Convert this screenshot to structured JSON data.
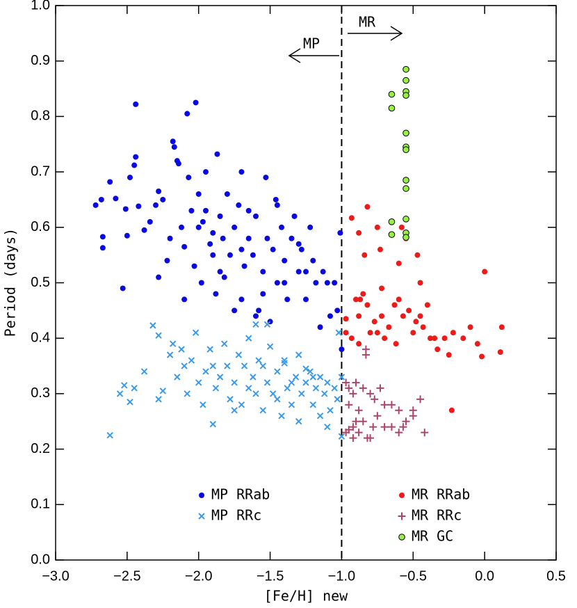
{
  "chart_data": {
    "type": "scatter",
    "xlabel": "[Fe/H] new",
    "ylabel": "Period (days)",
    "xlim": [
      -3.0,
      0.5
    ],
    "ylim": [
      0.0,
      1.0
    ],
    "xticks": [
      {
        "value": -3.0,
        "label": "−3.0"
      },
      {
        "value": -2.5,
        "label": "−2.5"
      },
      {
        "value": -2.0,
        "label": "−2.0"
      },
      {
        "value": -1.5,
        "label": "−1.5"
      },
      {
        "value": -1.0,
        "label": "−1.0"
      },
      {
        "value": -0.5,
        "label": "−0.5"
      },
      {
        "value": 0.0,
        "label": "0.0"
      },
      {
        "value": 0.5,
        "label": "0.5"
      }
    ],
    "yticks": [
      {
        "value": 0.0,
        "label": "0.0"
      },
      {
        "value": 0.1,
        "label": "0.1"
      },
      {
        "value": 0.2,
        "label": "0.2"
      },
      {
        "value": 0.3,
        "label": "0.3"
      },
      {
        "value": 0.4,
        "label": "0.4"
      },
      {
        "value": 0.5,
        "label": "0.5"
      },
      {
        "value": 0.6,
        "label": "0.6"
      },
      {
        "value": 0.7,
        "label": "0.7"
      },
      {
        "value": 0.8,
        "label": "0.8"
      },
      {
        "value": 0.9,
        "label": "0.9"
      },
      {
        "value": 1.0,
        "label": "1.0"
      }
    ],
    "divider_x": -1.0,
    "annotations": [
      "MP",
      "MR"
    ],
    "series": [
      {
        "name": "MP RRab",
        "color": "#0a0ae0",
        "marker": "circle",
        "x": [
          -2.72,
          -2.68,
          -2.67,
          -2.67,
          -2.62,
          -2.58,
          -2.53,
          -2.51,
          -2.5,
          -2.48,
          -2.45,
          -2.44,
          -2.44,
          -2.42,
          -2.38,
          -2.34,
          -2.3,
          -2.28,
          -2.28,
          -2.25,
          -2.22,
          -2.2,
          -2.18,
          -2.17,
          -2.15,
          -2.14,
          -2.12,
          -2.1,
          -2.08,
          -2.07,
          -2.05,
          -2.03,
          -2.02,
          -2.0,
          -1.98,
          -1.97,
          -1.95,
          -1.92,
          -1.9,
          -1.88,
          -1.87,
          -1.85,
          -1.83,
          -1.82,
          -1.8,
          -1.78,
          -1.75,
          -1.72,
          -1.7,
          -1.7,
          -1.68,
          -1.65,
          -1.62,
          -1.6,
          -1.58,
          -1.55,
          -1.53,
          -1.52,
          -1.5,
          -1.48,
          -1.46,
          -1.45,
          -1.42,
          -1.4,
          -1.38,
          -1.35,
          -1.33,
          -1.3,
          -1.28,
          -1.25,
          -1.22,
          -1.2,
          -1.18,
          -1.15,
          -1.13,
          -1.1,
          -1.08,
          -1.05,
          -1.03,
          -1.01,
          -1.0,
          -1.6,
          -1.75,
          -2.1,
          -1.9,
          -1.65,
          -1.45,
          -1.3,
          -1.55,
          -1.85,
          -2.0,
          -1.4,
          -1.25,
          -1.7,
          -1.95
        ],
        "values": [
          0.64,
          0.65,
          0.583,
          0.563,
          0.682,
          0.652,
          0.49,
          0.633,
          0.585,
          0.69,
          0.712,
          0.727,
          0.822,
          0.638,
          0.595,
          0.61,
          0.64,
          0.665,
          0.51,
          0.65,
          0.54,
          0.58,
          0.755,
          0.745,
          0.72,
          0.715,
          0.6,
          0.565,
          0.805,
          0.69,
          0.63,
          0.53,
          0.825,
          0.6,
          0.5,
          0.61,
          0.7,
          0.57,
          0.55,
          0.48,
          0.732,
          0.62,
          0.58,
          0.51,
          0.66,
          0.55,
          0.6,
          0.64,
          0.47,
          0.7,
          0.53,
          0.58,
          0.55,
          0.62,
          0.45,
          0.52,
          0.69,
          0.58,
          0.43,
          0.56,
          0.65,
          0.5,
          0.6,
          0.54,
          0.47,
          0.58,
          0.62,
          0.52,
          0.56,
          0.47,
          0.6,
          0.54,
          0.5,
          0.42,
          0.52,
          0.5,
          0.44,
          0.5,
          0.45,
          0.59,
          0.38,
          0.44,
          0.45,
          0.47,
          0.59,
          0.63,
          0.64,
          0.57,
          0.48,
          0.52,
          0.66,
          0.5,
          0.52,
          0.56,
          0.63
        ]
      },
      {
        "name": "MP RRc",
        "color": "#3a9ae8",
        "marker": "x",
        "x": [
          -2.62,
          -2.55,
          -2.52,
          -2.48,
          -2.45,
          -2.38,
          -2.32,
          -2.28,
          -2.28,
          -2.25,
          -2.2,
          -2.15,
          -2.12,
          -2.1,
          -2.08,
          -2.05,
          -2.02,
          -2.0,
          -1.97,
          -1.95,
          -1.92,
          -1.9,
          -1.88,
          -1.85,
          -1.82,
          -1.8,
          -1.78,
          -1.75,
          -1.72,
          -1.7,
          -1.68,
          -1.65,
          -1.62,
          -1.6,
          -1.58,
          -1.55,
          -1.52,
          -1.5,
          -1.48,
          -1.45,
          -1.42,
          -1.4,
          -1.38,
          -1.35,
          -1.32,
          -1.3,
          -1.28,
          -1.25,
          -1.22,
          -1.2,
          -1.18,
          -1.15,
          -1.12,
          -1.1,
          -1.08,
          -1.05,
          -1.03,
          -1.02,
          -1.0,
          -1.0,
          -1.6,
          -1.52,
          -1.4,
          -1.3,
          -1.15,
          -1.25,
          -1.35,
          -1.45,
          -1.75,
          -1.9,
          -2.18,
          -1.2,
          -1.1,
          -1.65,
          -1.55
        ],
        "values": [
          0.225,
          0.3,
          0.315,
          0.285,
          0.31,
          0.34,
          0.423,
          0.405,
          0.29,
          0.305,
          0.37,
          0.33,
          0.38,
          0.35,
          0.3,
          0.36,
          0.41,
          0.32,
          0.28,
          0.34,
          0.38,
          0.245,
          0.31,
          0.33,
          0.39,
          0.35,
          0.29,
          0.32,
          0.37,
          0.28,
          0.35,
          0.4,
          0.33,
          0.3,
          0.36,
          0.27,
          0.32,
          0.385,
          0.3,
          0.34,
          0.26,
          0.36,
          0.31,
          0.28,
          0.33,
          0.37,
          0.3,
          0.32,
          0.34,
          0.28,
          0.31,
          0.33,
          0.3,
          0.32,
          0.27,
          0.31,
          0.29,
          0.41,
          0.223,
          0.33,
          0.425,
          0.425,
          0.355,
          0.25,
          0.26,
          0.345,
          0.32,
          0.29,
          0.27,
          0.35,
          0.39,
          0.33,
          0.24,
          0.31,
          0.35
        ]
      },
      {
        "name": "MR RRab",
        "color": "#ee1a1a",
        "marker": "circle",
        "x": [
          -0.93,
          -0.82,
          -0.75,
          -0.73,
          -0.88,
          -0.84,
          -0.55,
          -0.58,
          -0.6,
          -0.47,
          0.0,
          -0.97,
          -0.97,
          -0.93,
          -0.88,
          -0.87,
          -0.85,
          -0.82,
          -0.8,
          -0.77,
          -0.75,
          -0.72,
          -0.7,
          -0.67,
          -0.63,
          -0.6,
          -0.57,
          -0.53,
          -0.5,
          -0.48,
          -0.45,
          -0.43,
          -0.4,
          -0.35,
          -0.33,
          -0.28,
          -0.25,
          -0.22,
          -0.15,
          -0.1,
          -0.05,
          0.12,
          0.11,
          -0.02,
          -0.23,
          -0.88,
          -0.62,
          -0.45,
          -0.38,
          -0.72,
          -0.9
        ],
        "values": [
          0.617,
          0.637,
          0.6,
          0.56,
          0.59,
          0.55,
          0.58,
          0.6,
          0.535,
          0.55,
          0.52,
          0.435,
          0.41,
          0.4,
          0.44,
          0.47,
          0.48,
          0.46,
          0.41,
          0.43,
          0.41,
          0.44,
          0.4,
          0.42,
          0.46,
          0.47,
          0.44,
          0.45,
          0.41,
          0.43,
          0.44,
          0.42,
          0.46,
          0.4,
          0.38,
          0.4,
          0.37,
          0.41,
          0.4,
          0.42,
          0.39,
          0.42,
          0.375,
          0.367,
          0.27,
          0.39,
          0.39,
          0.5,
          0.4,
          0.49,
          0.47
        ]
      },
      {
        "name": "MR RRc",
        "color": "#b04468",
        "marker": "plus",
        "x": [
          -0.97,
          -0.95,
          -0.92,
          -0.9,
          -0.85,
          -0.83,
          -0.83,
          -0.8,
          -0.77,
          -0.73,
          -0.7,
          -0.65,
          -0.6,
          -0.5,
          -0.45,
          -0.55,
          -0.42,
          -0.95,
          -0.9,
          -0.85,
          -0.82,
          -0.88,
          -0.92,
          -0.95,
          -0.75,
          -0.7,
          -0.65,
          -0.6,
          -0.57,
          -0.8,
          -0.88,
          -0.92,
          -0.97,
          -0.78,
          -0.5
        ],
        "values": [
          0.32,
          0.31,
          0.3,
          0.32,
          0.31,
          0.38,
          0.37,
          0.3,
          0.29,
          0.31,
          0.28,
          0.28,
          0.27,
          0.27,
          0.29,
          0.25,
          0.23,
          0.28,
          0.25,
          0.25,
          0.22,
          0.23,
          0.24,
          0.235,
          0.26,
          0.24,
          0.24,
          0.23,
          0.24,
          0.22,
          0.27,
          0.22,
          0.23,
          0.24,
          0.26
        ]
      },
      {
        "name": "MR GC",
        "color": "#99ee44",
        "marker": "circle-edge",
        "x": [
          -0.65,
          -0.65,
          -0.55,
          -0.55,
          -0.55,
          -0.55,
          -0.55,
          -0.55,
          -0.55,
          -0.55,
          -0.55,
          -0.65,
          -0.65,
          -0.55,
          -0.55,
          -0.55
        ],
        "values": [
          0.84,
          0.815,
          0.885,
          0.865,
          0.845,
          0.838,
          0.77,
          0.745,
          0.74,
          0.685,
          0.67,
          0.61,
          0.587,
          0.615,
          0.59,
          0.582
        ]
      }
    ]
  }
}
